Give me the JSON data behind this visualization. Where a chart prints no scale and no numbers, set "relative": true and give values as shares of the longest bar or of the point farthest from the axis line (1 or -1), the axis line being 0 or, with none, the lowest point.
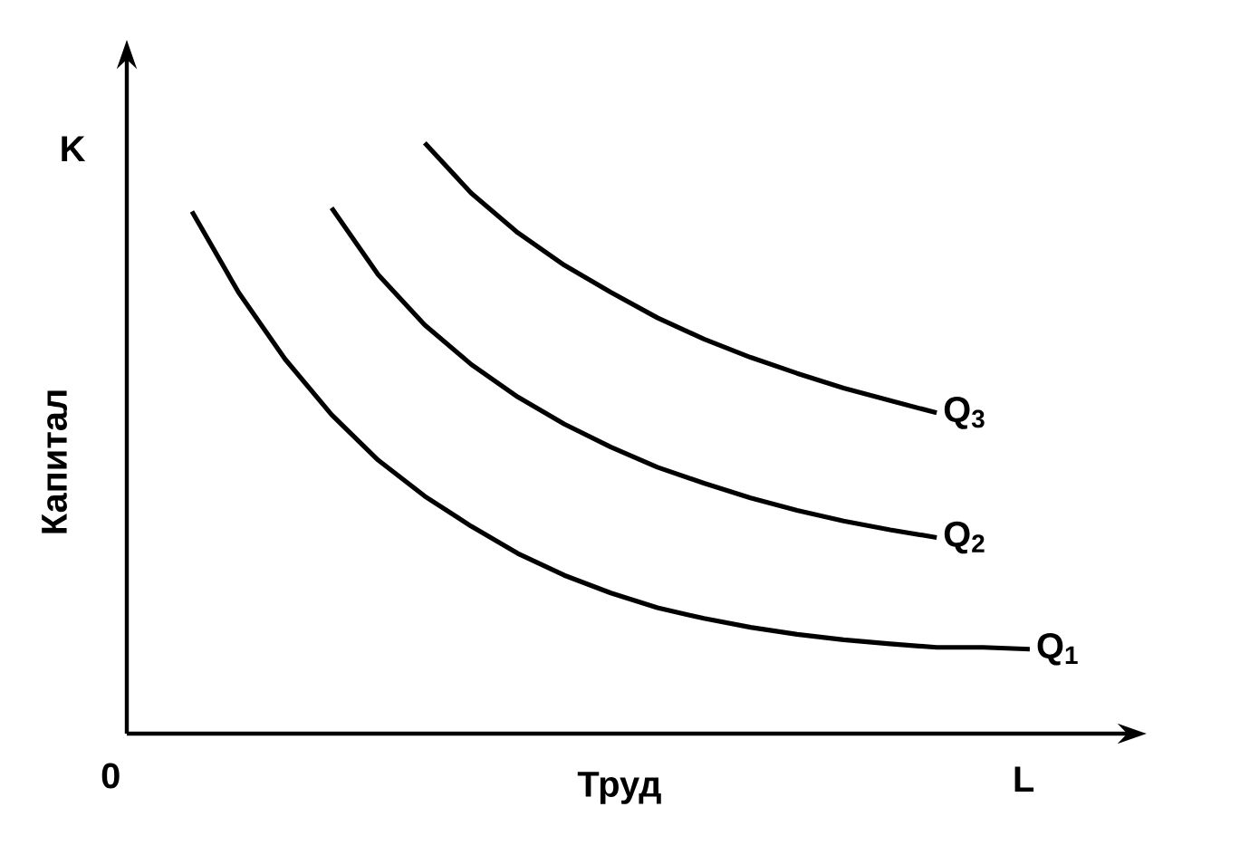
{
  "chart_data": {
    "type": "line",
    "relative": true,
    "xlabel": "Труд",
    "ylabel": "Капитал",
    "annotations": [
      "K",
      "L",
      "0"
    ],
    "categories": [
      null,
      null,
      null,
      null,
      null,
      null,
      null,
      null,
      null,
      null,
      null,
      null,
      null,
      null,
      null,
      null,
      null,
      null,
      null
    ],
    "series": [
      {
        "name": "Q$_{1}$",
        "color": "#000000",
        "values": [
          0.884,
          0.747,
          0.634,
          0.54,
          0.463,
          0.402,
          0.351,
          0.305,
          0.268,
          0.238,
          0.213,
          0.195,
          0.18,
          0.168,
          0.159,
          0.152,
          0.146,
          0.146,
          0.143
        ]
      },
      {
        "name": "Q$_{2}$",
        "color": "#000000",
        "values": [
          null,
          null,
          null,
          0.89,
          0.777,
          0.692,
          0.625,
          0.57,
          0.524,
          0.485,
          0.451,
          0.424,
          0.399,
          0.378,
          0.36,
          0.345,
          0.332,
          null,
          null
        ]
      },
      {
        "name": "Q$_{3}$",
        "color": "#000000",
        "values": [
          null,
          null,
          null,
          null,
          null,
          1.0,
          0.915,
          0.848,
          0.793,
          0.747,
          0.704,
          0.668,
          0.637,
          0.61,
          0.585,
          0.564,
          0.543,
          null,
          null
        ]
      }
    ]
  }
}
